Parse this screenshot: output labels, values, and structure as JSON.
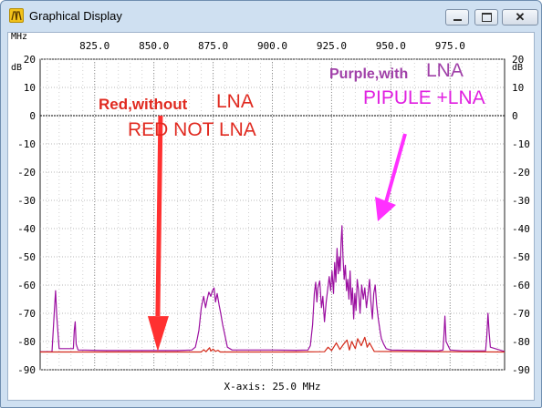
{
  "window": {
    "title": "Graphical Display",
    "icon": "app-icon",
    "controls": [
      "minimize-icon",
      "maximize-icon",
      "close-icon"
    ]
  },
  "chart_data": {
    "type": "line",
    "x_unit": "MHz",
    "y_unit": "dB",
    "xlim": [
      802,
      998
    ],
    "ylim": [
      -90,
      20
    ],
    "x_ticks": [
      825,
      850,
      875,
      900,
      925,
      950,
      975
    ],
    "x_tick_labels": [
      "825.0",
      "850.0",
      "875.0",
      "900.0",
      "925.0",
      "950.0",
      "975.0"
    ],
    "y_ticks": [
      20,
      10,
      0,
      -10,
      -20,
      -30,
      -40,
      -50,
      -60,
      -70,
      -80,
      -90
    ],
    "y_tick_labels": [
      "20",
      "10",
      "0",
      "-10",
      "-20",
      "-30",
      "-40",
      "-50",
      "-60",
      "-70",
      "-80",
      "-90"
    ],
    "grid": true,
    "xlabel": "X-axis: 25.0 MHz",
    "series": [
      {
        "color": "#9b0fa0",
        "x": [
          802,
          807,
          808,
          808.5,
          809,
          810,
          814,
          816,
          816.4,
          816.8,
          817.2,
          818,
          830,
          840,
          850,
          860,
          866,
          867.5,
          868.3,
          869,
          870,
          871,
          871.8,
          872.5,
          873.2,
          874,
          874.7,
          875.4,
          876,
          876.7,
          877.5,
          878.2,
          879,
          879.8,
          880.5,
          881,
          883,
          890,
          900,
          910,
          915,
          916,
          917,
          917.7,
          918.3,
          918.8,
          919.2,
          920,
          920.7,
          921.3,
          922,
          922.7,
          923.4,
          924,
          924.6,
          925.2,
          925.8,
          926.3,
          926.8,
          927.3,
          927.8,
          928.2,
          928.6,
          929,
          929.4,
          929.8,
          930.3,
          930.8,
          931.3,
          931.8,
          932.3,
          932.8,
          933.3,
          933.8,
          934.3,
          934.8,
          935.3,
          935.8,
          936.4,
          937,
          937.7,
          938.4,
          939,
          939.7,
          940.4,
          941,
          941.6,
          942.2,
          942.8,
          943.4,
          944,
          944.7,
          945.4,
          946,
          947,
          948,
          950,
          970,
          972,
          972.4,
          972.8,
          973.3,
          975,
          980,
          988,
          990,
          990.5,
          991,
          991.5,
          992,
          998
        ],
        "y": [
          -83.6,
          -83.6,
          -69,
          -62,
          -71,
          -82.5,
          -82.5,
          -82.5,
          -76,
          -73,
          -81,
          -83,
          -83.2,
          -83.2,
          -83.2,
          -83.2,
          -83,
          -82,
          -79,
          -76,
          -68,
          -64,
          -68,
          -65,
          -62.5,
          -64,
          -62,
          -61,
          -66,
          -63,
          -67,
          -70,
          -74,
          -77,
          -80,
          -82,
          -83,
          -83,
          -83,
          -83.1,
          -83,
          -81.5,
          -74,
          -63,
          -59,
          -66,
          -61,
          -58.5,
          -68,
          -64,
          -73,
          -66,
          -61,
          -57,
          -62,
          -55,
          -63,
          -52,
          -59,
          -47,
          -56,
          -50,
          -55,
          -45,
          -39,
          -50,
          -58,
          -53,
          -62,
          -58,
          -65,
          -55,
          -67,
          -61,
          -72,
          -63,
          -69,
          -58,
          -62,
          -70,
          -60,
          -65,
          -61,
          -68,
          -63,
          -58,
          -66,
          -72,
          -63,
          -60,
          -67,
          -72,
          -76,
          -79,
          -81,
          -82.5,
          -83,
          -83.3,
          -83,
          -78,
          -71,
          -80,
          -83,
          -83.3,
          -83.3,
          -83.3,
          -78,
          -70,
          -77,
          -82,
          -83.5
        ]
      },
      {
        "color": "#d42a1a",
        "x": [
          802,
          870,
          871,
          872,
          873.5,
          874,
          875,
          876,
          877,
          878,
          910,
          922,
          923.5,
          925,
          927,
          928.5,
          930,
          931.5,
          932.5,
          933.5,
          935,
          936,
          937.5,
          939,
          940,
          941,
          943,
          998
        ],
        "y": [
          -83.7,
          -83.7,
          -82.9,
          -83.6,
          -82.2,
          -83.4,
          -82.7,
          -83.5,
          -83.1,
          -83.7,
          -83.7,
          -83.6,
          -82,
          -83.2,
          -80.5,
          -82.8,
          -81,
          -79.5,
          -83,
          -80,
          -82.5,
          -79,
          -81.5,
          -78.5,
          -82,
          -80.5,
          -83.5,
          -83.7
        ]
      }
    ],
    "annotations": {
      "purple_label_1": "Purple,with",
      "purple_label_2": "LNA",
      "purple_label_3": "PIPULE +LNA",
      "red_label_1": "Red,without",
      "red_label_2": "LNA",
      "red_label_3": "RED NOT LNA"
    },
    "colors": {
      "purple_text": "#a040a8",
      "magenta_text": "#e020e0",
      "red_text": "#e02a20",
      "red_arrow": "#ff3030",
      "magenta_arrow": "#ff30ff"
    }
  }
}
